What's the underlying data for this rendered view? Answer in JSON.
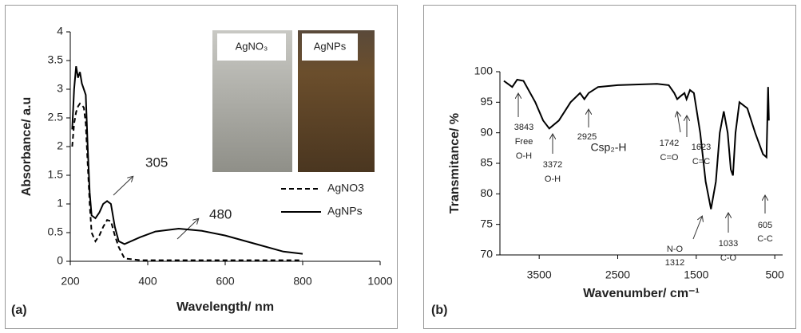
{
  "chart_data": [
    {
      "type": "line",
      "panel_label": "(a)",
      "x_label": "Wavelength/ nm",
      "y_label": "Absorbance/ a.u",
      "xlim": [
        200,
        1000
      ],
      "xticks": [
        200,
        400,
        600,
        800,
        1000
      ],
      "ylim": [
        0,
        4
      ],
      "yticks": [
        0,
        0.5,
        1,
        1.5,
        2,
        2.5,
        3,
        3.5,
        4
      ],
      "x": [
        205,
        210,
        215,
        220,
        225,
        230,
        235,
        240,
        245,
        250,
        255,
        265,
        275,
        285,
        295,
        305,
        315,
        325,
        340,
        380,
        420,
        480,
        540,
        600,
        680,
        750,
        800
      ],
      "series": [
        {
          "name": "AgNO3",
          "color": "#000000",
          "style": "dashed",
          "values": [
            2.0,
            2.4,
            2.6,
            2.7,
            2.75,
            2.72,
            2.68,
            2.4,
            1.7,
            1.0,
            0.5,
            0.35,
            0.45,
            0.6,
            0.72,
            0.7,
            0.45,
            0.25,
            0.05,
            0.02,
            0.02,
            0.02,
            0.02,
            0.02,
            0.02,
            0.02,
            0.02
          ]
        },
        {
          "name": "AgNPs",
          "color": "#000000",
          "style": "solid",
          "values": [
            2.3,
            3.0,
            3.4,
            3.2,
            3.3,
            3.1,
            3.0,
            2.9,
            2.0,
            1.2,
            0.8,
            0.75,
            0.85,
            1.0,
            1.05,
            1.0,
            0.6,
            0.35,
            0.3,
            0.42,
            0.52,
            0.57,
            0.53,
            0.45,
            0.3,
            0.17,
            0.13
          ]
        }
      ],
      "annotations": [
        [
          "305"
        ],
        [
          "480"
        ]
      ],
      "inset_labels": [
        "AgNO₃",
        "AgNPs"
      ]
    },
    {
      "type": "line",
      "panel_label": "(b)",
      "x_label": "Wavenumber/ cm⁻¹",
      "y_label": "Transmitance/ %",
      "xlim": [
        4000,
        400
      ],
      "xticks": [
        3500,
        2500,
        1500,
        500
      ],
      "ylim": [
        70,
        100
      ],
      "yticks": [
        70,
        75,
        80,
        85,
        90,
        95,
        100
      ],
      "x": [
        3950,
        3843,
        3780,
        3700,
        3550,
        3450,
        3372,
        3250,
        3100,
        2980,
        2925,
        2870,
        2750,
        2500,
        2000,
        1850,
        1780,
        1742,
        1700,
        1650,
        1623,
        1580,
        1530,
        1450,
        1380,
        1312,
        1250,
        1200,
        1150,
        1100,
        1060,
        1033,
        1000,
        950,
        850,
        750,
        650,
        605,
        585,
        575
      ],
      "series": [
        {
          "color": "#000000",
          "style": "solid",
          "values": [
            98.5,
            97.5,
            98.7,
            98.5,
            95,
            92,
            90.7,
            92,
            95,
            96.5,
            95.5,
            96.5,
            97.5,
            97.8,
            98,
            97.8,
            96.5,
            95.5,
            96,
            96.5,
            95.5,
            97,
            96.5,
            90,
            82,
            77.5,
            82,
            90,
            93.5,
            90,
            84,
            83,
            90,
            95,
            94,
            90,
            86.5,
            86,
            97.5,
            92
          ]
        }
      ],
      "annotations": [
        [
          "3843",
          "Free",
          "O-H"
        ],
        [
          "3372",
          "O-H"
        ],
        [
          "2925"
        ],
        [
          "Csp₂-H"
        ],
        [
          "1742",
          "C=O"
        ],
        [
          "1623",
          "C=C"
        ],
        [
          "N-O",
          "1312"
        ],
        [
          "1033",
          "C-O"
        ],
        [
          "605",
          "C-C"
        ]
      ]
    }
  ]
}
